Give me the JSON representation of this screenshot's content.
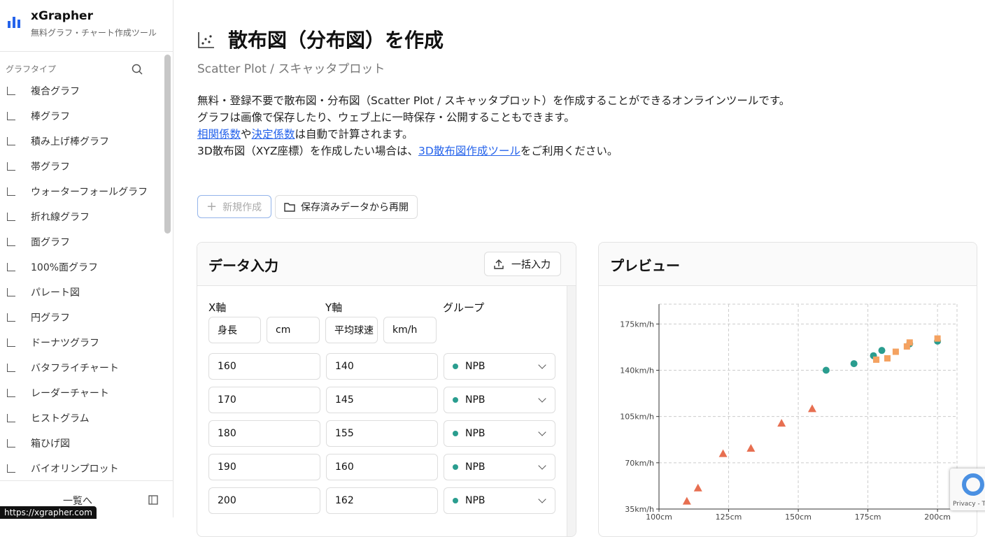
{
  "sidebar": {
    "brand": "xGrapher",
    "tagline": "無料グラフ・チャート作成ツール",
    "section": "グラフタイプ",
    "items": [
      "複合グラフ",
      "棒グラフ",
      "積み上げ棒グラフ",
      "帯グラフ",
      "ウォーターフォールグラフ",
      "折れ線グラフ",
      "面グラフ",
      "100%面グラフ",
      "パレート図",
      "円グラフ",
      "ドーナツグラフ",
      "バタフライチャート",
      "レーダーチャート",
      "ヒストグラム",
      "箱ひげ図",
      "バイオリンプロット"
    ],
    "footer": "一覧へ"
  },
  "status_url": "https://xgrapher.com",
  "header": {
    "title": "散布図（分布図）を作成",
    "subtitle": "Scatter Plot / スキャッタプロット"
  },
  "description": [
    [
      {
        "text": "無料・登録不要で散布図・分布図（Scatter Plot / スキャッタプロット）を作成することができるオンラインツールです。"
      }
    ],
    [
      {
        "text": "グラフは画像で保存したり、ウェブ上に一時保存・公開することもできます。"
      }
    ],
    [
      {
        "text": "相関係数",
        "link": true
      },
      {
        "text": "や"
      },
      {
        "text": "決定係数",
        "link": true
      },
      {
        "text": "は自動で計算されます。"
      }
    ],
    [
      {
        "text": "3D散布図（XYZ座標）を作成したい場合は、"
      },
      {
        "text": "3D散布図作成ツール",
        "link": true
      },
      {
        "text": "をご利用ください。"
      }
    ]
  ],
  "actions": [
    "新規作成",
    "保存済みデータから再開"
  ],
  "data_panel": {
    "title": "データ入力",
    "import": "一括入力",
    "labels": [
      "X軸",
      "Y軸",
      "グループ"
    ],
    "x_name": "身長",
    "x_unit": "cm",
    "y_name": "平均球速",
    "y_unit": "km/h",
    "rows": [
      [
        160,
        140,
        "NPB"
      ],
      [
        170,
        145,
        "NPB"
      ],
      [
        180,
        155,
        "NPB"
      ],
      [
        190,
        160,
        "NPB"
      ],
      [
        200,
        162,
        "NPB"
      ]
    ]
  },
  "preview": {
    "title": "プレビュー",
    "chart": {
      "type": "scatter",
      "xlim": [
        100,
        207
      ],
      "ylim": [
        35,
        190
      ],
      "xticks": [
        {
          "value": 100,
          "label": "100cm"
        },
        {
          "value": 125,
          "label": "125cm"
        },
        {
          "value": 150,
          "label": "150cm"
        },
        {
          "value": 175,
          "label": "175cm"
        },
        {
          "value": 200,
          "label": "200cm"
        }
      ],
      "yticks": [
        {
          "value": 35,
          "label": "35km/h"
        },
        {
          "value": 70,
          "label": "70km/h"
        },
        {
          "value": 105,
          "label": "105km/h"
        },
        {
          "value": 140,
          "label": "140km/h"
        },
        {
          "value": 175,
          "label": "175km/h"
        }
      ],
      "grid": true,
      "series": [
        {
          "color": "#2a9d8f",
          "marker": "circle",
          "x": [
            160,
            170,
            177,
            180,
            190,
            200
          ],
          "y": [
            140,
            145,
            151,
            155,
            160,
            162
          ]
        },
        {
          "color": "#e76f51",
          "marker": "triangle",
          "x": [
            110,
            114,
            123,
            133,
            144,
            155
          ],
          "y": [
            41,
            51,
            77,
            81,
            100,
            111
          ]
        },
        {
          "color": "#f4a261",
          "marker": "square",
          "x": [
            178,
            182,
            185,
            189,
            190,
            200
          ],
          "y": [
            148,
            149,
            154,
            158,
            161,
            164
          ]
        }
      ]
    }
  },
  "recaptcha": "Privacy - Te"
}
